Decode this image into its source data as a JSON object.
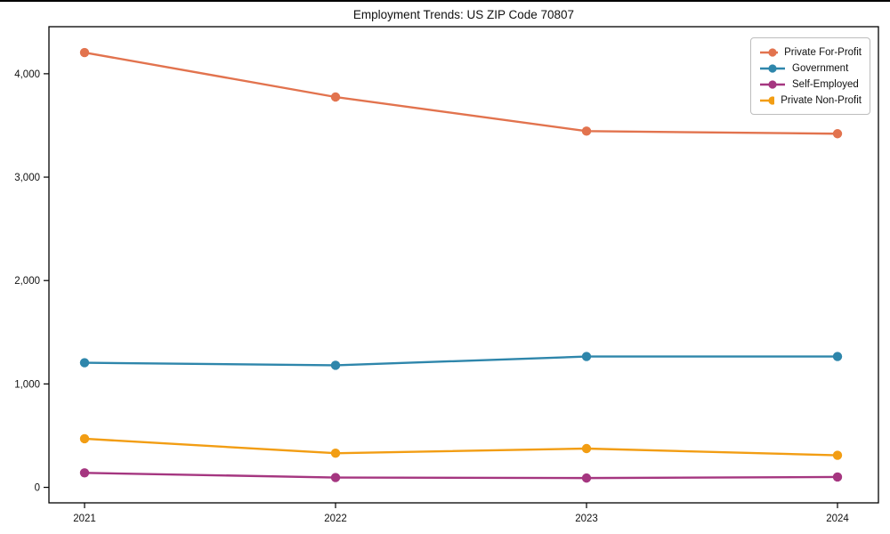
{
  "chart_data": {
    "type": "line",
    "title": "Employment Trends: US ZIP Code 70807",
    "categories": [
      "2021",
      "2022",
      "2023",
      "2024"
    ],
    "series": [
      {
        "name": "Private For-Profit",
        "color": "#e2734e",
        "values": [
          4205,
          3775,
          3445,
          3420
        ]
      },
      {
        "name": "Government",
        "color": "#2e86ab",
        "values": [
          1205,
          1180,
          1265,
          1265
        ]
      },
      {
        "name": "Self-Employed",
        "color": "#a53680",
        "values": [
          140,
          95,
          90,
          100
        ]
      },
      {
        "name": "Private Non-Profit",
        "color": "#f29d13",
        "values": [
          470,
          330,
          375,
          310
        ]
      }
    ],
    "xlabel": "",
    "ylabel": "",
    "ylim": [
      -150,
      4455
    ],
    "y_ticks": [
      0,
      1000,
      2000,
      3000,
      4000
    ],
    "y_tick_labels": [
      "0",
      "1,000",
      "2,000",
      "3,000",
      "4,000"
    ],
    "grid": false,
    "legend_position": "upper right",
    "marker": "circle",
    "axis_color": "#000000"
  }
}
